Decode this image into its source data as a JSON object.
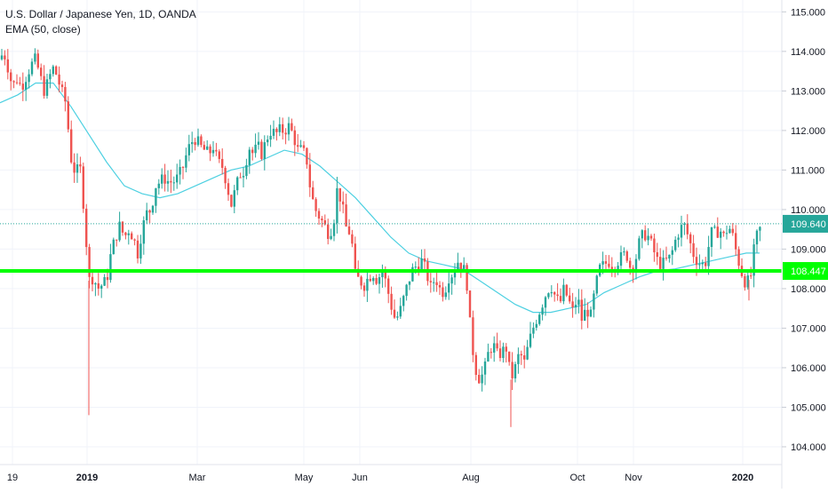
{
  "header": {
    "symbol_line": "U.S. Dollar / Japanese Yen, 1D, OANDA",
    "indicator_line": "EMA (50, close)"
  },
  "chart_data": {
    "type": "candlestick",
    "symbol": "U.S. Dollar / Japanese Yen",
    "interval": "1D",
    "source": "OANDA",
    "indicator": "EMA (50, close)",
    "yrange": [
      103.55,
      115.3
    ],
    "yticks": [
      "115.000",
      "114.000",
      "113.000",
      "112.000",
      "111.000",
      "110.000",
      "109.000",
      "108.000",
      "107.000",
      "106.000",
      "105.000",
      "104.000"
    ],
    "xticks": [
      "19",
      "2019",
      "Mar",
      "May",
      "Jun",
      "Aug",
      "Oct",
      "Nov",
      "2020"
    ],
    "xtick_bold": [
      "2019",
      "2020"
    ],
    "last_price": 109.64,
    "last_price_label": "109.640",
    "horizontal_level": 108.447,
    "horizontal_level_label": "108.447",
    "colors": {
      "up": "#26a69a",
      "down": "#ef5350",
      "ema": "#4dd0e1",
      "level_line": "#00ff00",
      "last_price": "#26a69a",
      "axis_text": "#131722",
      "grid": "#f0f3fa"
    },
    "path": [
      [
        0,
        113.8
      ],
      [
        4,
        114.0
      ],
      [
        9,
        113.6
      ],
      [
        14,
        113.1
      ],
      [
        19,
        113.3
      ],
      [
        24,
        113.1
      ],
      [
        28,
        113.3
      ],
      [
        34,
        113.6
      ],
      [
        39,
        113.8
      ],
      [
        44,
        113.5
      ],
      [
        49,
        113.0
      ],
      [
        54,
        113.2
      ],
      [
        59,
        113.6
      ],
      [
        64,
        113.4
      ],
      [
        69,
        113.0
      ],
      [
        74,
        112.7
      ],
      [
        80,
        111.3
      ],
      [
        85,
        110.9
      ],
      [
        90,
        111.1
      ],
      [
        95,
        109.9
      ],
      [
        100,
        108.2
      ],
      [
        105,
        108.3
      ],
      [
        110,
        108.0
      ],
      [
        115,
        108.1
      ],
      [
        120,
        108.2
      ],
      [
        125,
        108.9
      ],
      [
        130,
        109.3
      ],
      [
        135,
        109.6
      ],
      [
        140,
        109.3
      ],
      [
        145,
        109.5
      ],
      [
        150,
        109.3
      ],
      [
        155,
        108.9
      ],
      [
        160,
        109.5
      ],
      [
        165,
        109.9
      ],
      [
        170,
        110.0
      ],
      [
        175,
        110.6
      ],
      [
        180,
        110.7
      ],
      [
        185,
        110.8
      ],
      [
        190,
        110.7
      ],
      [
        195,
        110.7
      ],
      [
        200,
        110.8
      ],
      [
        205,
        111.0
      ],
      [
        210,
        111.4
      ],
      [
        215,
        111.7
      ],
      [
        220,
        111.8
      ],
      [
        225,
        111.6
      ],
      [
        230,
        111.5
      ],
      [
        235,
        111.4
      ],
      [
        240,
        111.6
      ],
      [
        245,
        111.2
      ],
      [
        250,
        111.1
      ],
      [
        255,
        110.7
      ],
      [
        260,
        110.1
      ],
      [
        265,
        110.5
      ],
      [
        270,
        110.9
      ],
      [
        275,
        111.0
      ],
      [
        280,
        111.6
      ],
      [
        285,
        111.4
      ],
      [
        290,
        111.6
      ],
      [
        295,
        111.4
      ],
      [
        300,
        111.8
      ],
      [
        305,
        112.0
      ],
      [
        310,
        111.9
      ],
      [
        315,
        112.0
      ],
      [
        320,
        112.0
      ],
      [
        325,
        112.1
      ],
      [
        330,
        111.9
      ],
      [
        335,
        111.5
      ],
      [
        340,
        111.5
      ],
      [
        345,
        111.3
      ],
      [
        350,
        110.4
      ],
      [
        355,
        110.0
      ],
      [
        360,
        109.8
      ],
      [
        365,
        109.6
      ],
      [
        370,
        109.4
      ],
      [
        375,
        109.6
      ],
      [
        380,
        110.6
      ],
      [
        385,
        110.1
      ],
      [
        390,
        109.5
      ],
      [
        395,
        109.4
      ],
      [
        400,
        108.3
      ],
      [
        405,
        108.2
      ],
      [
        410,
        108.1
      ],
      [
        415,
        108.3
      ],
      [
        420,
        108.4
      ],
      [
        425,
        108.2
      ],
      [
        430,
        108.5
      ],
      [
        435,
        108.1
      ],
      [
        440,
        107.6
      ],
      [
        445,
        107.2
      ],
      [
        450,
        107.4
      ],
      [
        455,
        107.8
      ],
      [
        460,
        108.2
      ],
      [
        465,
        108.5
      ],
      [
        470,
        108.6
      ],
      [
        475,
        108.7
      ],
      [
        480,
        108.4
      ],
      [
        485,
        108.0
      ],
      [
        490,
        108.3
      ],
      [
        495,
        108.0
      ],
      [
        500,
        107.9
      ],
      [
        505,
        108.3
      ],
      [
        510,
        108.4
      ],
      [
        515,
        108.7
      ],
      [
        520,
        108.6
      ],
      [
        525,
        108.3
      ],
      [
        530,
        106.8
      ],
      [
        535,
        106.0
      ],
      [
        540,
        105.7
      ],
      [
        545,
        105.9
      ],
      [
        550,
        106.4
      ],
      [
        555,
        106.6
      ],
      [
        560,
        106.3
      ],
      [
        565,
        106.4
      ],
      [
        570,
        106.5
      ],
      [
        575,
        105.7
      ],
      [
        580,
        106.0
      ],
      [
        585,
        106.4
      ],
      [
        590,
        106.1
      ],
      [
        595,
        106.6
      ],
      [
        600,
        107.0
      ],
      [
        605,
        107.3
      ],
      [
        610,
        107.6
      ],
      [
        615,
        107.9
      ],
      [
        620,
        108.1
      ],
      [
        625,
        107.8
      ],
      [
        630,
        107.6
      ],
      [
        635,
        108.0
      ],
      [
        640,
        107.7
      ],
      [
        645,
        107.4
      ],
      [
        650,
        107.8
      ],
      [
        655,
        107.2
      ],
      [
        660,
        107.5
      ],
      [
        665,
        107.3
      ],
      [
        670,
        108.0
      ],
      [
        675,
        108.5
      ],
      [
        680,
        108.6
      ],
      [
        685,
        108.7
      ],
      [
        690,
        108.6
      ],
      [
        695,
        108.7
      ],
      [
        700,
        108.8
      ],
      [
        705,
        108.9
      ],
      [
        710,
        108.5
      ],
      [
        715,
        108.7
      ],
      [
        720,
        109.2
      ],
      [
        725,
        109.4
      ],
      [
        730,
        109.3
      ],
      [
        735,
        109.0
      ],
      [
        740,
        108.7
      ],
      [
        745,
        108.6
      ],
      [
        750,
        108.7
      ],
      [
        755,
        108.8
      ],
      [
        760,
        109.2
      ],
      [
        765,
        109.5
      ],
      [
        770,
        109.6
      ],
      [
        775,
        109.3
      ],
      [
        780,
        108.9
      ],
      [
        785,
        108.7
      ],
      [
        790,
        108.6
      ],
      [
        795,
        108.7
      ],
      [
        800,
        109.4
      ],
      [
        805,
        109.4
      ],
      [
        810,
        109.5
      ],
      [
        815,
        109.3
      ],
      [
        820,
        109.6
      ],
      [
        825,
        109.3
      ],
      [
        830,
        108.8
      ],
      [
        835,
        108.4
      ],
      [
        840,
        108.1
      ],
      [
        845,
        108.3
      ],
      [
        850,
        109.2
      ],
      [
        855,
        109.5
      ]
    ],
    "ema_path": [
      [
        0,
        112.7
      ],
      [
        20,
        112.9
      ],
      [
        40,
        113.2
      ],
      [
        60,
        113.2
      ],
      [
        80,
        112.6
      ],
      [
        100,
        111.9
      ],
      [
        120,
        111.2
      ],
      [
        140,
        110.6
      ],
      [
        160,
        110.4
      ],
      [
        180,
        110.3
      ],
      [
        200,
        110.4
      ],
      [
        220,
        110.6
      ],
      [
        240,
        110.8
      ],
      [
        260,
        111.0
      ],
      [
        280,
        111.1
      ],
      [
        300,
        111.3
      ],
      [
        320,
        111.5
      ],
      [
        340,
        111.4
      ],
      [
        360,
        111.1
      ],
      [
        380,
        110.7
      ],
      [
        400,
        110.3
      ],
      [
        420,
        109.8
      ],
      [
        440,
        109.3
      ],
      [
        460,
        108.9
      ],
      [
        480,
        108.7
      ],
      [
        500,
        108.6
      ],
      [
        520,
        108.5
      ],
      [
        540,
        108.2
      ],
      [
        560,
        107.9
      ],
      [
        580,
        107.6
      ],
      [
        600,
        107.4
      ],
      [
        620,
        107.4
      ],
      [
        640,
        107.5
      ],
      [
        660,
        107.6
      ],
      [
        680,
        107.9
      ],
      [
        700,
        108.1
      ],
      [
        720,
        108.3
      ],
      [
        740,
        108.45
      ],
      [
        760,
        108.5
      ],
      [
        780,
        108.6
      ],
      [
        800,
        108.7
      ],
      [
        820,
        108.8
      ],
      [
        840,
        108.9
      ],
      [
        855,
        108.9
      ]
    ],
    "spikes": [
      {
        "x": 100,
        "low": 104.8
      },
      {
        "x": 575,
        "low": 104.5
      },
      {
        "x": 843,
        "low": 107.7
      }
    ]
  }
}
